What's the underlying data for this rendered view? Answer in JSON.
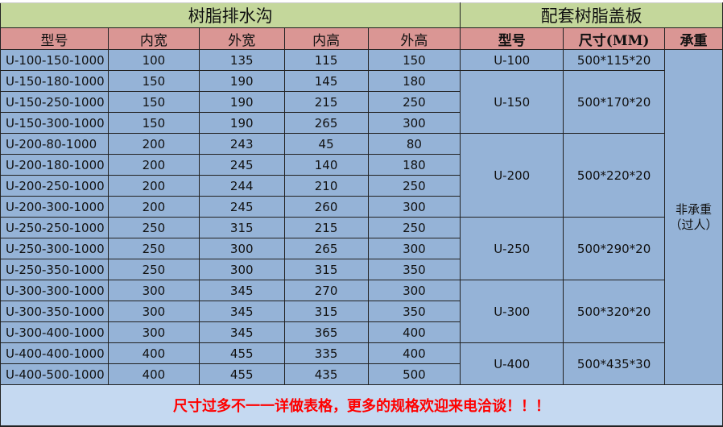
{
  "title_left": "树脂排水沟",
  "title_right": "配套树脂盖板",
  "headers_left": [
    "型号",
    "内宽",
    "外宽",
    "内高",
    "外高"
  ],
  "headers_right": [
    "型号",
    "尺寸(MM)",
    "承重"
  ],
  "rows": [
    [
      "U-100-150-1000",
      "100",
      "135",
      "115",
      "150"
    ],
    [
      "U-150-180-1000",
      "150",
      "190",
      "145",
      "180"
    ],
    [
      "U-150-250-1000",
      "150",
      "190",
      "215",
      "250"
    ],
    [
      "U-150-300-1000",
      "150",
      "190",
      "265",
      "300"
    ],
    [
      "U-200-80-1000",
      "200",
      "243",
      "45",
      "80"
    ],
    [
      "U-200-180-1000",
      "200",
      "245",
      "140",
      "180"
    ],
    [
      "U-200-250-1000",
      "200",
      "244",
      "210",
      "250"
    ],
    [
      "U-200-300-1000",
      "200",
      "245",
      "260",
      "300"
    ],
    [
      "U-250-250-1000",
      "250",
      "315",
      "215",
      "250"
    ],
    [
      "U-250-300-1000",
      "250",
      "300",
      "265",
      "300"
    ],
    [
      "U-250-350-1000",
      "250",
      "300",
      "315",
      "350"
    ],
    [
      "U-300-300-1000",
      "300",
      "345",
      "270",
      "300"
    ],
    [
      "U-300-350-1000",
      "300",
      "345",
      "315",
      "350"
    ],
    [
      "U-300-400-1000",
      "300",
      "345",
      "365",
      "400"
    ],
    [
      "U-400-400-1000",
      "400",
      "455",
      "335",
      "400"
    ],
    [
      "U-400-500-1000",
      "400",
      "455",
      "435",
      "500"
    ]
  ],
  "covers": [
    {
      "model": "U-100",
      "size": "500*115*20",
      "span": 1
    },
    {
      "model": "U-150",
      "size": "500*170*20",
      "span": 3
    },
    {
      "model": "U-200",
      "size": "500*220*20",
      "span": 4
    },
    {
      "model": "U-250",
      "size": "500*290*20",
      "span": 3
    },
    {
      "model": "U-300",
      "size": "500*320*20",
      "span": 3
    },
    {
      "model": "U-400",
      "size": "500*435*30",
      "span": 2
    }
  ],
  "load": "非承重（过人）",
  "footer": "尺寸过多不一一详做表格，更多的规格欢迎来电洽谈！！！",
  "colors": {
    "title": "#c4d79b",
    "header": "#da9694",
    "cell": "#95b3d7",
    "footer": "#c5d9f1",
    "footer_text": "#ff0000"
  }
}
